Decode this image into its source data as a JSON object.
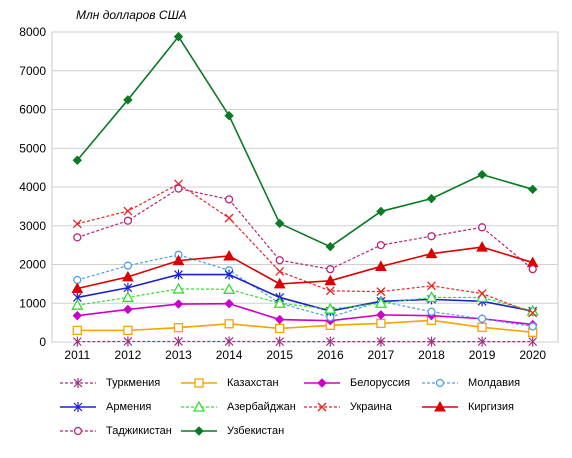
{
  "chart_data": {
    "type": "line",
    "unit_label": "Млн долларов США",
    "categories": [
      "2011",
      "2012",
      "2013",
      "2014",
      "2015",
      "2016",
      "2017",
      "2018",
      "2019",
      "2020"
    ],
    "ylim": [
      0,
      8000
    ],
    "yticks": [
      0,
      1000,
      2000,
      3000,
      4000,
      5000,
      6000,
      7000,
      8000
    ],
    "grid": "horizontal",
    "legend_position": "bottom",
    "series": [
      {
        "name": "Туркмения",
        "color": "#a0307f",
        "dash": true,
        "marker": "asterisk",
        "values": [
          10,
          15,
          15,
          15,
          10,
          10,
          10,
          10,
          10,
          10
        ]
      },
      {
        "name": "Казахстан",
        "color": "#f5a400",
        "dash": false,
        "marker": "square-open",
        "values": [
          300,
          300,
          370,
          470,
          350,
          430,
          480,
          560,
          380,
          250
        ]
      },
      {
        "name": "Белоруссия",
        "color": "#cc00cc",
        "dash": false,
        "marker": "diamond-filled",
        "values": [
          680,
          840,
          980,
          990,
          580,
          550,
          700,
          680,
          600,
          450
        ]
      },
      {
        "name": "Молдавия",
        "color": "#4f9eea",
        "dash": true,
        "marker": "circle-open",
        "values": [
          1600,
          1970,
          2250,
          1850,
          1000,
          640,
          1050,
          780,
          600,
          400
        ]
      },
      {
        "name": "Армения",
        "color": "#1b22cc",
        "dash": false,
        "marker": "asterisk",
        "values": [
          1150,
          1400,
          1740,
          1740,
          1150,
          800,
          1050,
          1100,
          1050,
          800
        ]
      },
      {
        "name": "Азербайджан",
        "color": "#33dd33",
        "dash": true,
        "marker": "triangle-open",
        "values": [
          950,
          1150,
          1370,
          1360,
          1000,
          850,
          1000,
          1150,
          1150,
          800
        ]
      },
      {
        "name": "Украина",
        "color": "#ee2222",
        "dash": true,
        "marker": "cross",
        "values": [
          3050,
          3380,
          4080,
          3200,
          1820,
          1320,
          1300,
          1450,
          1250,
          750
        ]
      },
      {
        "name": "Киргизия",
        "color": "#dd0000",
        "dash": false,
        "marker": "triangle-filled",
        "values": [
          1380,
          1680,
          2100,
          2220,
          1500,
          1580,
          1950,
          2280,
          2450,
          2050
        ]
      },
      {
        "name": "Таджикистан",
        "color": "#bb2277",
        "dash": true,
        "marker": "circle-open",
        "values": [
          2700,
          3130,
          3960,
          3680,
          2110,
          1880,
          2500,
          2730,
          2960,
          1880
        ]
      },
      {
        "name": "Узбекистан",
        "color": "#0a7a24",
        "dash": false,
        "marker": "diamond-filled",
        "values": [
          4690,
          6250,
          7880,
          5840,
          3060,
          2460,
          3370,
          3700,
          4320,
          3940
        ]
      }
    ]
  }
}
